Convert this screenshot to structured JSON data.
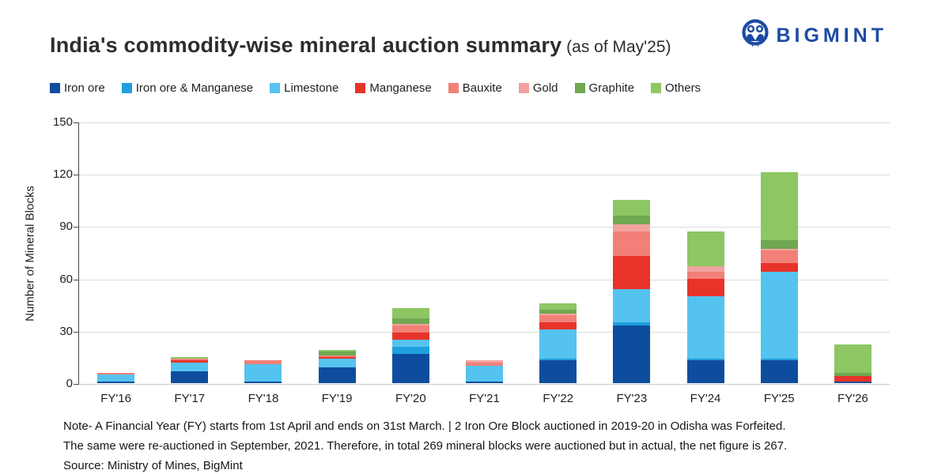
{
  "title": {
    "main": "India's commodity-wise mineral auction summary",
    "suffix": " (as of May'25)"
  },
  "logo": {
    "text": "BIGMINT",
    "color": "#1c4ba3"
  },
  "notes": {
    "line1": "Note- A Financial Year (FY) starts from 1st April and ends on 31st March. |  2 Iron Ore Block auctioned in 2019-20 in Odisha was Forfeited.",
    "line2": "The same were re-auctioned in September, 2021. Therefore, in total 269 mineral blocks were auctioned but in actual, the net figure is 267.",
    "line3": "Source: Ministry of Mines, BigMint"
  },
  "chart_data": {
    "type": "bar",
    "subtype": "stacked",
    "title": "India's commodity-wise mineral auction summary (as of May'25)",
    "xlabel": "",
    "ylabel": "Number of Mineral Blocks",
    "ylim": [
      0,
      150
    ],
    "yticks": [
      0,
      30,
      60,
      90,
      120,
      150
    ],
    "grid": "horizontal",
    "legend_position": "top-left",
    "categories": [
      "FY'16",
      "FY'17",
      "FY'18",
      "FY'19",
      "FY'20",
      "FY'21",
      "FY'22",
      "FY'23",
      "FY'24",
      "FY'25",
      "FY'26"
    ],
    "series": [
      {
        "name": "Iron ore",
        "color": "#0e4d9e",
        "values": [
          1,
          7,
          1,
          9,
          17,
          1,
          13,
          33,
          13,
          13,
          1
        ]
      },
      {
        "name": "Iron ore & Manganese",
        "color": "#1fa0de",
        "values": [
          0,
          0,
          0,
          0,
          4,
          0,
          1,
          2,
          1,
          1,
          0
        ]
      },
      {
        "name": "Limestone",
        "color": "#55c3f0",
        "values": [
          4,
          5,
          10,
          5,
          4,
          9,
          17,
          19,
          36,
          50,
          0
        ]
      },
      {
        "name": "Manganese",
        "color": "#e8332a",
        "values": [
          0,
          1,
          0,
          1,
          4,
          0,
          4,
          19,
          10,
          5,
          3
        ]
      },
      {
        "name": "Bauxite",
        "color": "#f28078",
        "values": [
          1,
          1,
          2,
          1,
          4,
          2,
          4,
          14,
          4,
          7,
          0
        ]
      },
      {
        "name": "Gold",
        "color": "#f2a3a0",
        "values": [
          0,
          0,
          0,
          0,
          1,
          1,
          1,
          4,
          3,
          1,
          0
        ]
      },
      {
        "name": "Graphite",
        "color": "#70a851",
        "values": [
          0,
          0,
          0,
          2,
          3,
          0,
          2,
          5,
          0,
          5,
          2
        ]
      },
      {
        "name": "Others",
        "color": "#8dc663",
        "values": [
          0,
          1,
          0,
          1,
          6,
          0,
          4,
          9,
          20,
          39,
          16
        ]
      }
    ],
    "totals": [
      6,
      15,
      13,
      19,
      43,
      13,
      46,
      105,
      87,
      121,
      22
    ]
  }
}
